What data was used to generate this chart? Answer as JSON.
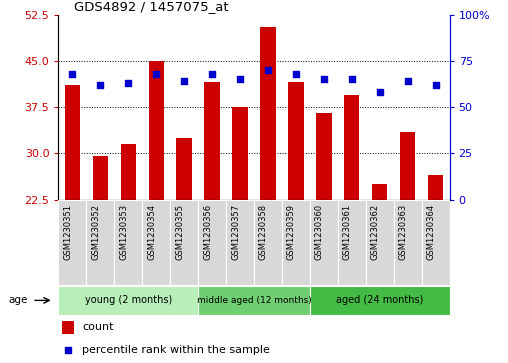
{
  "title": "GDS4892 / 1457075_at",
  "samples": [
    "GSM1230351",
    "GSM1230352",
    "GSM1230353",
    "GSM1230354",
    "GSM1230355",
    "GSM1230356",
    "GSM1230357",
    "GSM1230358",
    "GSM1230359",
    "GSM1230360",
    "GSM1230361",
    "GSM1230362",
    "GSM1230363",
    "GSM1230364"
  ],
  "bar_values": [
    41.0,
    29.5,
    31.5,
    45.0,
    32.5,
    41.5,
    37.5,
    50.5,
    41.5,
    36.5,
    39.5,
    25.0,
    33.5,
    26.5
  ],
  "dot_values_pct": [
    68,
    62,
    63,
    68,
    64,
    68,
    65,
    70,
    68,
    65,
    65,
    58,
    64,
    62
  ],
  "ylim_left": [
    22.5,
    52.5
  ],
  "ylim_right": [
    0,
    100
  ],
  "yticks_left": [
    22.5,
    30,
    37.5,
    45,
    52.5
  ],
  "yticks_right": [
    0,
    25,
    50,
    75,
    100
  ],
  "bar_color": "#cc0000",
  "dot_color": "#0000cc",
  "bar_width": 0.55,
  "groups": [
    {
      "label": "young (2 months)",
      "start": 0,
      "end": 5
    },
    {
      "label": "middle aged (12 months)",
      "start": 5,
      "end": 9
    },
    {
      "label": "aged (24 months)",
      "start": 9,
      "end": 14
    }
  ],
  "group_colors": [
    "#b8eeb8",
    "#6fce6f",
    "#44bb44"
  ],
  "age_label": "age",
  "legend_count_label": "count",
  "legend_pct_label": "percentile rank within the sample",
  "left_axis_color": "#cc0000",
  "right_axis_color": "#0000cc",
  "right_tick_labels": [
    "0",
    "25",
    "50",
    "75",
    "100%"
  ]
}
